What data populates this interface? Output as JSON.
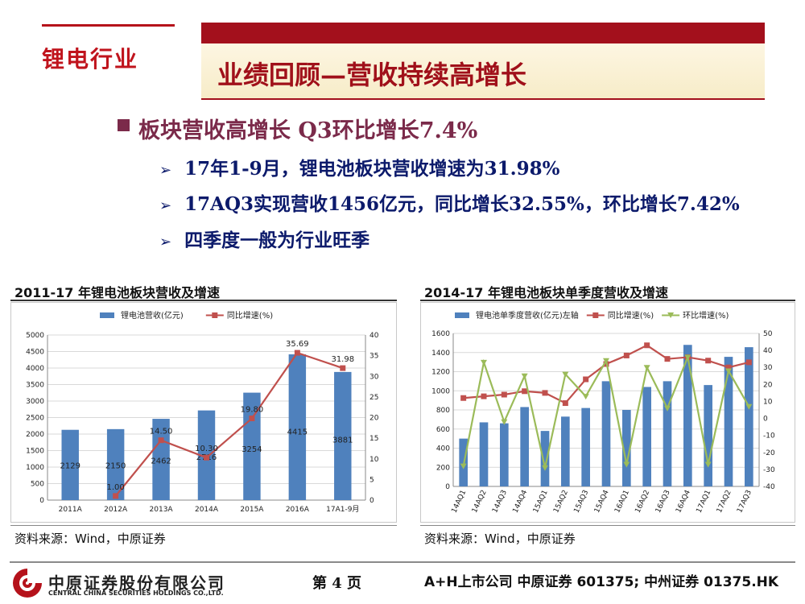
{
  "header": {
    "section_label": "锂电行业",
    "title": "业绩回顾—营收持续高增长"
  },
  "bullet": {
    "heading": "板块营收高增长 Q3环比增长7.4%",
    "items": [
      "17年1-9月，锂电池板块营收增速为31.98%",
      "17AQ3实现营收1456亿元，同比增长32.55%，环比增长7.42%",
      "四季度一般为行业旺季"
    ]
  },
  "charts": [
    {
      "source": "资料来源：Wind，中原证券"
    },
    {
      "source": "资料来源：Wind，中原证券"
    }
  ],
  "chart_data": [
    {
      "type": "bar",
      "title": "2011-17 年锂电池板块营收及增速",
      "categories": [
        "2011A",
        "2012A",
        "2013A",
        "2014A",
        "2015A",
        "2016A",
        "17A1-9月"
      ],
      "series": [
        {
          "name": "锂电池营收(亿元)",
          "type": "bar",
          "axis": "left",
          "color": "#4f81bd",
          "values": [
            2129,
            2150,
            2462,
            2716,
            3254,
            4415,
            3881
          ],
          "labels": [
            "2129",
            "2150",
            "2462",
            "2716",
            "3254",
            "4415",
            "3881"
          ]
        },
        {
          "name": "同比增速(%)",
          "type": "line",
          "axis": "right",
          "color": "#c0504d",
          "values": [
            null,
            1.0,
            14.5,
            10.3,
            19.8,
            35.69,
            31.98
          ],
          "labels": [
            "",
            "1.00",
            "14.50",
            "10.30",
            "19.80",
            "35.69",
            "31.98"
          ]
        }
      ],
      "ylim_left": [
        0,
        5000
      ],
      "yticks_left": [
        0,
        500,
        1000,
        1500,
        2000,
        2500,
        3000,
        3500,
        4000,
        4500,
        5000
      ],
      "ylim_right": [
        0,
        40
      ],
      "yticks_right": [
        0,
        5,
        10,
        15,
        20,
        25,
        30,
        35,
        40
      ],
      "grid": true,
      "legend": "top"
    },
    {
      "type": "bar",
      "title": "2014-17 年锂电池板块单季度营收及增速",
      "categories": [
        "14AQ1",
        "14AQ2",
        "14AQ3",
        "14AQ4",
        "15AQ1",
        "15AQ2",
        "15AQ3",
        "15AQ4",
        "16AQ1",
        "16AQ2",
        "16AQ3",
        "16AQ4",
        "17AQ1",
        "17AQ2",
        "17AQ3"
      ],
      "series": [
        {
          "name": "锂电池单季度营收(亿元)左轴",
          "type": "bar",
          "axis": "left",
          "color": "#4f81bd",
          "values": [
            500,
            670,
            660,
            830,
            580,
            730,
            820,
            1100,
            800,
            1040,
            1100,
            1480,
            1060,
            1355,
            1456
          ]
        },
        {
          "name": "同比增速(%)",
          "type": "line",
          "axis": "right",
          "color": "#c0504d",
          "values": [
            12,
            13,
            14,
            16,
            15,
            9,
            23,
            32,
            37,
            43,
            35,
            36,
            34,
            30,
            33
          ]
        },
        {
          "name": "环比增速(%)",
          "type": "line",
          "axis": "right",
          "color": "#9bbb59",
          "values": [
            -28,
            33,
            -2,
            25,
            -29,
            26,
            13,
            34,
            -27,
            30,
            6,
            36,
            -27,
            28,
            7
          ]
        }
      ],
      "ylim_left": [
        0,
        1600
      ],
      "yticks_left": [
        0,
        200,
        400,
        600,
        800,
        1000,
        1200,
        1400,
        1600
      ],
      "ylim_right": [
        -40,
        50
      ],
      "yticks_right": [
        -40,
        -30,
        -20,
        -10,
        0,
        10,
        20,
        30,
        40,
        50
      ],
      "grid": true,
      "legend": "top"
    }
  ],
  "footer": {
    "company_cn": "中原证券股份有限公司",
    "company_en": "CENTRAL CHINA SECURITIES HOLDINGS CO.,LTD.",
    "page": "第 4 页",
    "listing": "A+H上市公司 中原证券 601375;  中州证券 01375.HK"
  }
}
